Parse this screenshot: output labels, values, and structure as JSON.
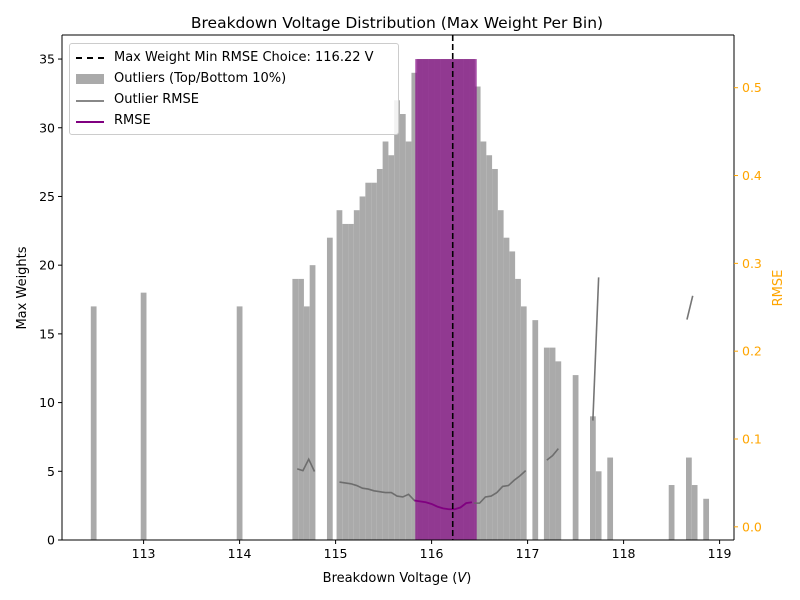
{
  "chart_data": {
    "type": "bar",
    "title": "Breakdown Voltage Distribution (Max Weight Per Bin)",
    "xlabel": "Breakdown Voltage (V)",
    "ylabel": "Max Weights",
    "y2label": "RMSE",
    "xlim": [
      112.15,
      119.15
    ],
    "ylim": [
      0,
      36.75
    ],
    "y2lim": [
      -0.015,
      0.56
    ],
    "x_ticks": [
      113,
      114,
      115,
      116,
      117,
      118,
      119
    ],
    "y_ticks": [
      0,
      5,
      10,
      15,
      20,
      25,
      30,
      35
    ],
    "y2_ticks": [
      0.0,
      0.1,
      0.2,
      0.3,
      0.4,
      0.5
    ],
    "bin_width": 0.06,
    "outlier_series": {
      "name": "Outliers (Top/Bottom 10%)",
      "color": "#aaaaaa",
      "bars": [
        {
          "x": 112.48,
          "value": 17
        },
        {
          "x": 113.0,
          "value": 18
        },
        {
          "x": 114.0,
          "value": 17
        },
        {
          "x": 114.58,
          "value": 19
        },
        {
          "x": 114.64,
          "value": 19
        },
        {
          "x": 114.7,
          "value": 17
        },
        {
          "x": 114.76,
          "value": 20
        },
        {
          "x": 114.94,
          "value": 22
        },
        {
          "x": 116.48,
          "value": 33
        },
        {
          "x": 117.08,
          "value": 16
        },
        {
          "x": 117.2,
          "value": 14
        },
        {
          "x": 117.26,
          "value": 14
        },
        {
          "x": 117.32,
          "value": 13
        },
        {
          "x": 117.5,
          "value": 12
        },
        {
          "x": 117.68,
          "value": 9
        },
        {
          "x": 117.74,
          "value": 5
        },
        {
          "x": 117.86,
          "value": 6
        },
        {
          "x": 118.5,
          "value": 4
        },
        {
          "x": 118.68,
          "value": 6
        },
        {
          "x": 118.74,
          "value": 4
        },
        {
          "x": 118.86,
          "value": 3
        }
      ]
    },
    "core_series": {
      "color": "#aaaaaa",
      "bars": [
        {
          "x": 115.04,
          "value": 24
        },
        {
          "x": 115.1,
          "value": 23
        },
        {
          "x": 115.16,
          "value": 23
        },
        {
          "x": 115.22,
          "value": 24
        },
        {
          "x": 115.28,
          "value": 25
        },
        {
          "x": 115.34,
          "value": 26
        },
        {
          "x": 115.4,
          "value": 26
        },
        {
          "x": 115.46,
          "value": 27
        },
        {
          "x": 115.52,
          "value": 29
        },
        {
          "x": 115.58,
          "value": 28
        },
        {
          "x": 115.64,
          "value": 32
        },
        {
          "x": 115.7,
          "value": 31
        },
        {
          "x": 115.76,
          "value": 29
        },
        {
          "x": 115.82,
          "value": 34
        },
        {
          "x": 115.88,
          "value": 35
        },
        {
          "x": 115.94,
          "value": 35
        },
        {
          "x": 116.0,
          "value": 35
        },
        {
          "x": 116.06,
          "value": 35
        },
        {
          "x": 116.12,
          "value": 35
        },
        {
          "x": 116.18,
          "value": 35
        },
        {
          "x": 116.24,
          "value": 35
        },
        {
          "x": 116.3,
          "value": 35
        },
        {
          "x": 116.36,
          "value": 35
        },
        {
          "x": 116.42,
          "value": 35
        },
        {
          "x": 116.54,
          "value": 29
        },
        {
          "x": 116.6,
          "value": 28
        },
        {
          "x": 116.66,
          "value": 27
        },
        {
          "x": 116.72,
          "value": 24
        },
        {
          "x": 116.78,
          "value": 22
        },
        {
          "x": 116.84,
          "value": 21
        },
        {
          "x": 116.9,
          "value": 19
        },
        {
          "x": 116.96,
          "value": 17
        }
      ]
    },
    "highlight_band": {
      "x_range": [
        115.83,
        116.47
      ],
      "value": 35,
      "color": "#8b1a8b"
    },
    "max_weight_choice": {
      "x": 116.22,
      "label": "Max Weight Min RMSE Choice: 116.22 V"
    },
    "outlier_rmse": {
      "name": "Outlier RMSE",
      "color": "#666666",
      "segments": [
        [
          [
            114.6,
            0.066
          ],
          [
            114.66,
            0.064
          ],
          [
            114.72,
            0.077
          ],
          [
            114.78,
            0.063
          ]
        ],
        [
          [
            115.04,
            0.051
          ],
          [
            115.1,
            0.05
          ],
          [
            115.16,
            0.049
          ],
          [
            115.22,
            0.047
          ],
          [
            115.28,
            0.044
          ],
          [
            115.34,
            0.043
          ],
          [
            115.4,
            0.041
          ],
          [
            115.46,
            0.04
          ],
          [
            115.52,
            0.039
          ],
          [
            115.58,
            0.039
          ],
          [
            115.64,
            0.035
          ],
          [
            115.7,
            0.034
          ],
          [
            115.76,
            0.037
          ],
          [
            115.82,
            0.03
          ]
        ],
        [
          [
            116.44,
            0.027
          ],
          [
            116.5,
            0.027
          ],
          [
            116.56,
            0.034
          ],
          [
            116.62,
            0.035
          ],
          [
            116.68,
            0.039
          ],
          [
            116.74,
            0.046
          ],
          [
            116.8,
            0.047
          ],
          [
            116.86,
            0.053
          ],
          [
            116.92,
            0.058
          ],
          [
            116.98,
            0.064
          ]
        ],
        [
          [
            117.2,
            0.076
          ],
          [
            117.26,
            0.081
          ],
          [
            117.32,
            0.089
          ]
        ],
        [
          [
            117.68,
            0.121
          ],
          [
            117.74,
            0.284
          ]
        ],
        [
          [
            118.66,
            0.236
          ],
          [
            118.72,
            0.263
          ]
        ]
      ]
    },
    "rmse": {
      "name": "RMSE",
      "color": "#800080",
      "points": [
        [
          115.82,
          0.03
        ],
        [
          115.88,
          0.029
        ],
        [
          115.94,
          0.028
        ],
        [
          116.0,
          0.026
        ],
        [
          116.06,
          0.023
        ],
        [
          116.12,
          0.021
        ],
        [
          116.18,
          0.02
        ],
        [
          116.24,
          0.02
        ],
        [
          116.3,
          0.022
        ],
        [
          116.36,
          0.027
        ],
        [
          116.42,
          0.028
        ]
      ]
    },
    "legend": {
      "placement": "upper-left",
      "entries": [
        {
          "label": "Max Weight Min RMSE Choice: 116.22 V",
          "style": "dashed"
        },
        {
          "label": "Outliers (Top/Bottom 10%)",
          "style": "patch"
        },
        {
          "label": "Outlier RMSE",
          "style": "line"
        },
        {
          "label": "RMSE",
          "style": "line"
        }
      ]
    },
    "colors": {
      "axis": "#000000",
      "y2_axis": "#FFA500",
      "bar": "#aaaaaa",
      "purple_bar": "#8b1a8b",
      "rmse": "#800080",
      "outlier_rmse": "#666666"
    }
  }
}
